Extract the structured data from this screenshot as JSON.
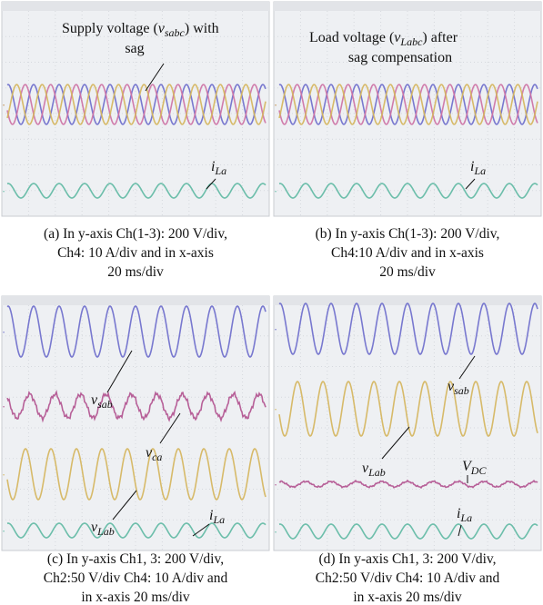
{
  "panels": [
    {
      "annotations": [
        {
          "prefix": "Supply voltage (",
          "symbol": "v",
          "subscript": "sabc",
          "suffix": ") with"
        },
        {
          "prefix": "sag"
        },
        {
          "symbol": "i",
          "subscript": "La"
        }
      ],
      "caption": [
        "(a) In y-axis Ch(1-3): 200 V/div,",
        "Ch4: 10 A/div and in x-axis",
        "20 ms/div"
      ]
    },
    {
      "annotations": [
        {
          "prefix": "Load voltage (",
          "symbol": "v",
          "subscript": "Labc",
          "suffix": ") after"
        },
        {
          "prefix": "sag compensation"
        },
        {
          "symbol": "i",
          "subscript": "La"
        }
      ],
      "caption": [
        "(b) In y-axis Ch(1-3): 200 V/div,",
        "Ch4:10 A/div and in x-axis",
        "20 ms/div"
      ]
    },
    {
      "annotations": [
        {
          "symbol": "v",
          "subscript": "sab"
        },
        {
          "symbol": "v",
          "subscript": "ca"
        },
        {
          "symbol": "v",
          "subscript": "Lab"
        },
        {
          "symbol": "i",
          "subscript": "La"
        }
      ],
      "caption": [
        "(c) In y-axis Ch1, 3: 200 V/div,",
        "Ch2:50 V/div Ch4: 10 A/div and",
        "in x-axis 20 ms/div"
      ]
    },
    {
      "annotations": [
        {
          "symbol": "v",
          "subscript": "sab"
        },
        {
          "symbol": "v",
          "subscript": "Lab"
        },
        {
          "symbol": "V",
          "subscript": "DC"
        },
        {
          "symbol": "i",
          "subscript": "La"
        }
      ],
      "caption": [
        "(d) In y-axis Ch1, 3: 200 V/div,",
        "Ch2:50 V/div Ch4: 10 A/div and",
        "in x-axis 20 ms/div"
      ]
    }
  ]
}
